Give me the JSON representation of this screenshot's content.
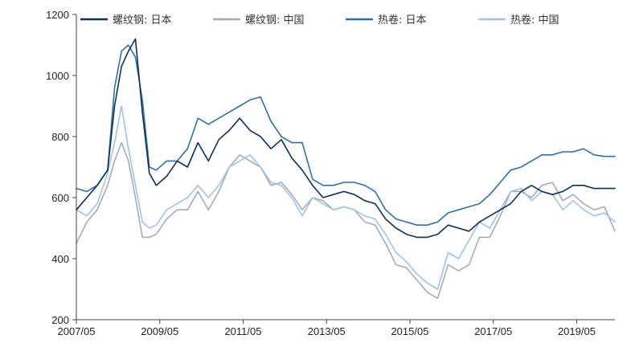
{
  "chart_data": {
    "type": "line",
    "title": "",
    "xlabel": "",
    "ylabel": "",
    "x_ticks": [
      "2007/05",
      "2009/05",
      "2011/05",
      "2013/05",
      "2015/05",
      "2017/05",
      "2019/05"
    ],
    "y_ticks": [
      200,
      400,
      600,
      800,
      1000,
      1200
    ],
    "ylim": [
      200,
      1200
    ],
    "xlim": [
      "2007/05",
      "2020/04"
    ],
    "grid": false,
    "legend_position": "top",
    "series": [
      {
        "name": "螺纹钢: 日本",
        "color": "#0d2f5c",
        "points": [
          [
            "2007/05",
            560
          ],
          [
            "2007/08",
            600
          ],
          [
            "2007/11",
            640
          ],
          [
            "2008/02",
            690
          ],
          [
            "2008/04",
            900
          ],
          [
            "2008/06",
            1030
          ],
          [
            "2008/08",
            1080
          ],
          [
            "2008/10",
            1120
          ],
          [
            "2008/12",
            880
          ],
          [
            "2009/02",
            680
          ],
          [
            "2009/04",
            640
          ],
          [
            "2009/07",
            670
          ],
          [
            "2009/10",
            720
          ],
          [
            "2010/01",
            700
          ],
          [
            "2010/04",
            780
          ],
          [
            "2010/07",
            720
          ],
          [
            "2010/10",
            790
          ],
          [
            "2011/01",
            820
          ],
          [
            "2011/04",
            860
          ],
          [
            "2011/07",
            820
          ],
          [
            "2011/10",
            800
          ],
          [
            "2012/01",
            760
          ],
          [
            "2012/04",
            790
          ],
          [
            "2012/07",
            730
          ],
          [
            "2012/10",
            690
          ],
          [
            "2013/01",
            640
          ],
          [
            "2013/04",
            600
          ],
          [
            "2013/07",
            610
          ],
          [
            "2013/10",
            620
          ],
          [
            "2014/01",
            610
          ],
          [
            "2014/04",
            590
          ],
          [
            "2014/07",
            580
          ],
          [
            "2014/10",
            530
          ],
          [
            "2015/01",
            500
          ],
          [
            "2015/04",
            480
          ],
          [
            "2015/07",
            470
          ],
          [
            "2015/10",
            470
          ],
          [
            "2016/01",
            480
          ],
          [
            "2016/04",
            510
          ],
          [
            "2016/07",
            500
          ],
          [
            "2016/10",
            490
          ],
          [
            "2017/01",
            520
          ],
          [
            "2017/04",
            540
          ],
          [
            "2017/07",
            560
          ],
          [
            "2017/10",
            580
          ],
          [
            "2018/01",
            620
          ],
          [
            "2018/04",
            640
          ],
          [
            "2018/07",
            620
          ],
          [
            "2018/10",
            610
          ],
          [
            "2019/01",
            620
          ],
          [
            "2019/04",
            640
          ],
          [
            "2019/07",
            640
          ],
          [
            "2019/10",
            630
          ],
          [
            "2020/01",
            630
          ],
          [
            "2020/04",
            630
          ]
        ]
      },
      {
        "name": "螺纹钢: 中国",
        "color": "#a7acb3",
        "points": [
          [
            "2007/05",
            450
          ],
          [
            "2007/08",
            520
          ],
          [
            "2007/11",
            560
          ],
          [
            "2008/02",
            640
          ],
          [
            "2008/04",
            720
          ],
          [
            "2008/06",
            780
          ],
          [
            "2008/08",
            720
          ],
          [
            "2008/10",
            600
          ],
          [
            "2008/12",
            470
          ],
          [
            "2009/02",
            470
          ],
          [
            "2009/04",
            480
          ],
          [
            "2009/07",
            530
          ],
          [
            "2009/10",
            560
          ],
          [
            "2010/01",
            560
          ],
          [
            "2010/04",
            620
          ],
          [
            "2010/07",
            560
          ],
          [
            "2010/10",
            620
          ],
          [
            "2011/01",
            700
          ],
          [
            "2011/04",
            740
          ],
          [
            "2011/07",
            720
          ],
          [
            "2011/10",
            700
          ],
          [
            "2012/01",
            640
          ],
          [
            "2012/04",
            650
          ],
          [
            "2012/07",
            610
          ],
          [
            "2012/10",
            560
          ],
          [
            "2013/01",
            600
          ],
          [
            "2013/04",
            590
          ],
          [
            "2013/07",
            560
          ],
          [
            "2013/10",
            570
          ],
          [
            "2014/01",
            560
          ],
          [
            "2014/04",
            520
          ],
          [
            "2014/07",
            510
          ],
          [
            "2014/10",
            450
          ],
          [
            "2015/01",
            380
          ],
          [
            "2015/04",
            370
          ],
          [
            "2015/07",
            330
          ],
          [
            "2015/10",
            290
          ],
          [
            "2016/01",
            270
          ],
          [
            "2016/04",
            380
          ],
          [
            "2016/07",
            360
          ],
          [
            "2016/10",
            380
          ],
          [
            "2017/01",
            470
          ],
          [
            "2017/04",
            470
          ],
          [
            "2017/07",
            540
          ],
          [
            "2017/10",
            620
          ],
          [
            "2018/01",
            620
          ],
          [
            "2018/04",
            600
          ],
          [
            "2018/07",
            640
          ],
          [
            "2018/10",
            650
          ],
          [
            "2019/01",
            590
          ],
          [
            "2019/04",
            610
          ],
          [
            "2019/07",
            580
          ],
          [
            "2019/10",
            560
          ],
          [
            "2020/01",
            570
          ],
          [
            "2020/04",
            490
          ]
        ]
      },
      {
        "name": "热卷: 日本",
        "color": "#2e6fb0",
        "points": [
          [
            "2007/05",
            630
          ],
          [
            "2007/08",
            620
          ],
          [
            "2007/11",
            640
          ],
          [
            "2008/02",
            690
          ],
          [
            "2008/04",
            960
          ],
          [
            "2008/06",
            1080
          ],
          [
            "2008/08",
            1100
          ],
          [
            "2008/10",
            1060
          ],
          [
            "2008/12",
            920
          ],
          [
            "2009/02",
            700
          ],
          [
            "2009/04",
            690
          ],
          [
            "2009/07",
            720
          ],
          [
            "2009/10",
            720
          ],
          [
            "2010/01",
            760
          ],
          [
            "2010/04",
            860
          ],
          [
            "2010/07",
            840
          ],
          [
            "2010/10",
            860
          ],
          [
            "2011/01",
            880
          ],
          [
            "2011/04",
            900
          ],
          [
            "2011/07",
            920
          ],
          [
            "2011/10",
            930
          ],
          [
            "2012/01",
            850
          ],
          [
            "2012/04",
            800
          ],
          [
            "2012/07",
            780
          ],
          [
            "2012/10",
            780
          ],
          [
            "2013/01",
            660
          ],
          [
            "2013/04",
            640
          ],
          [
            "2013/07",
            640
          ],
          [
            "2013/10",
            650
          ],
          [
            "2014/01",
            650
          ],
          [
            "2014/04",
            640
          ],
          [
            "2014/07",
            620
          ],
          [
            "2014/10",
            560
          ],
          [
            "2015/01",
            530
          ],
          [
            "2015/04",
            520
          ],
          [
            "2015/07",
            510
          ],
          [
            "2015/10",
            510
          ],
          [
            "2016/01",
            520
          ],
          [
            "2016/04",
            550
          ],
          [
            "2016/07",
            560
          ],
          [
            "2016/10",
            570
          ],
          [
            "2017/01",
            580
          ],
          [
            "2017/04",
            610
          ],
          [
            "2017/07",
            650
          ],
          [
            "2017/10",
            690
          ],
          [
            "2018/01",
            700
          ],
          [
            "2018/04",
            720
          ],
          [
            "2018/07",
            740
          ],
          [
            "2018/10",
            740
          ],
          [
            "2019/01",
            750
          ],
          [
            "2019/04",
            750
          ],
          [
            "2019/07",
            760
          ],
          [
            "2019/10",
            740
          ],
          [
            "2020/01",
            735
          ],
          [
            "2020/04",
            735
          ]
        ]
      },
      {
        "name": "热卷: 中国",
        "color": "#9fc4e8",
        "points": [
          [
            "2007/05",
            560
          ],
          [
            "2007/08",
            540
          ],
          [
            "2007/11",
            580
          ],
          [
            "2008/02",
            680
          ],
          [
            "2008/04",
            780
          ],
          [
            "2008/06",
            900
          ],
          [
            "2008/08",
            760
          ],
          [
            "2008/10",
            640
          ],
          [
            "2008/12",
            520
          ],
          [
            "2009/02",
            500
          ],
          [
            "2009/04",
            510
          ],
          [
            "2009/07",
            560
          ],
          [
            "2009/10",
            580
          ],
          [
            "2010/01",
            600
          ],
          [
            "2010/04",
            640
          ],
          [
            "2010/07",
            600
          ],
          [
            "2010/10",
            640
          ],
          [
            "2011/01",
            700
          ],
          [
            "2011/04",
            720
          ],
          [
            "2011/07",
            740
          ],
          [
            "2011/10",
            700
          ],
          [
            "2012/01",
            650
          ],
          [
            "2012/04",
            640
          ],
          [
            "2012/07",
            600
          ],
          [
            "2012/10",
            540
          ],
          [
            "2013/01",
            600
          ],
          [
            "2013/04",
            580
          ],
          [
            "2013/07",
            560
          ],
          [
            "2013/10",
            570
          ],
          [
            "2014/01",
            560
          ],
          [
            "2014/04",
            540
          ],
          [
            "2014/07",
            530
          ],
          [
            "2014/10",
            480
          ],
          [
            "2015/01",
            420
          ],
          [
            "2015/04",
            390
          ],
          [
            "2015/07",
            350
          ],
          [
            "2015/10",
            320
          ],
          [
            "2016/01",
            300
          ],
          [
            "2016/04",
            420
          ],
          [
            "2016/07",
            400
          ],
          [
            "2016/10",
            460
          ],
          [
            "2017/01",
            520
          ],
          [
            "2017/04",
            500
          ],
          [
            "2017/07",
            560
          ],
          [
            "2017/10",
            620
          ],
          [
            "2018/01",
            630
          ],
          [
            "2018/04",
            590
          ],
          [
            "2018/07",
            620
          ],
          [
            "2018/10",
            610
          ],
          [
            "2019/01",
            560
          ],
          [
            "2019/04",
            590
          ],
          [
            "2019/07",
            560
          ],
          [
            "2019/10",
            540
          ],
          [
            "2020/01",
            550
          ],
          [
            "2020/04",
            520
          ]
        ]
      }
    ]
  }
}
